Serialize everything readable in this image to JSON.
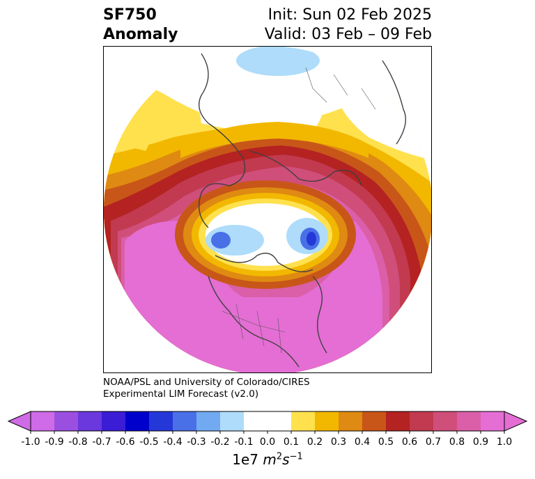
{
  "header": {
    "variable": "SF750",
    "kind": "Anomaly",
    "init": "Init: Sun 02 Feb 2025",
    "valid": "Valid: 03 Feb – 09 Feb"
  },
  "credit": {
    "line1": "NOAA/PSL and University of Colorado/CIRES",
    "line2": "Experimental LIM Forecast (v2.0)"
  },
  "colorbar": {
    "ticks": [
      "-1.0",
      "-0.9",
      "-0.8",
      "-0.7",
      "-0.6",
      "-0.5",
      "-0.4",
      "-0.3",
      "-0.2",
      "-0.1",
      "0.0",
      "0.1",
      "0.2",
      "0.3",
      "0.4",
      "0.5",
      "0.6",
      "0.7",
      "0.8",
      "0.9",
      "1.0"
    ],
    "colors": [
      "#cf6be6",
      "#9b4fe0",
      "#6a38dc",
      "#3b1dd6",
      "#0000cc",
      "#2438d8",
      "#4a70e8",
      "#72aaf2",
      "#aedcfa",
      "#ffffff",
      "#ffffff",
      "#ffe14e",
      "#f2b800",
      "#df8a12",
      "#c85618",
      "#b42222",
      "#c23a50",
      "#d04e7a",
      "#da5fa8",
      "#e46ed4"
    ],
    "units_prefix": "1e7 ",
    "units_math": "m",
    "units_exp1": "2",
    "units_s": "s",
    "units_exp2": "−1"
  },
  "map": {
    "projection": "north-polar-stereographic",
    "field": "streamfunction anomaly at 750 hPa",
    "features": [
      "positive-anomaly-ring",
      "negative-anomaly-arctic-center",
      "north-pole-centered"
    ]
  }
}
